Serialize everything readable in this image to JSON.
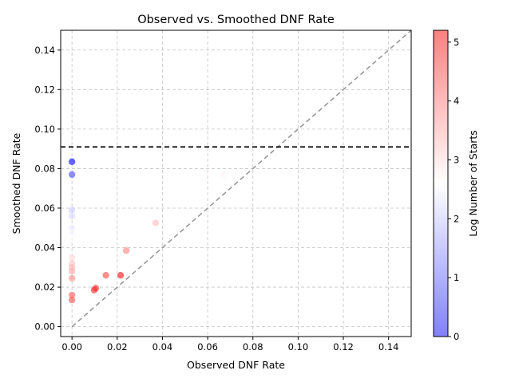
{
  "chart_data": {
    "type": "scatter",
    "title": "Observed vs. Smoothed DNF Rate",
    "xlabel": "Observed DNF Rate",
    "ylabel": "Smoothed DNF Rate",
    "xlim": [
      -0.005,
      0.15
    ],
    "ylim": [
      -0.005,
      0.15
    ],
    "x_ticks": [
      "0.00",
      "0.02",
      "0.04",
      "0.06",
      "0.08",
      "0.10",
      "0.12",
      "0.14"
    ],
    "y_ticks": [
      "0.00",
      "0.02",
      "0.04",
      "0.06",
      "0.08",
      "0.10",
      "0.12",
      "0.14"
    ],
    "grid": true,
    "reference_lines": [
      {
        "kind": "diagonal",
        "from": [
          0,
          0
        ],
        "to": [
          0.15,
          0.15
        ],
        "color": "#999999",
        "style": "dashed"
      },
      {
        "kind": "horizontal",
        "y": 0.091,
        "color": "#000000",
        "style": "dashed"
      }
    ],
    "colorbar": {
      "label": "Log Number of Starts",
      "ticks": [
        "0",
        "1",
        "2",
        "3",
        "4",
        "5"
      ],
      "range": [
        0,
        5.2
      ],
      "colormap": "bwr"
    },
    "points": [
      {
        "x": 0.0,
        "y": 0.0835,
        "c": 0.0
      },
      {
        "x": 0.0,
        "y": 0.077,
        "c": 0.69
      },
      {
        "x": 0.0,
        "y": 0.059,
        "c": 2.08
      },
      {
        "x": 0.0,
        "y": 0.056,
        "c": 2.2
      },
      {
        "x": 0.0,
        "y": 0.05,
        "c": 2.4
      },
      {
        "x": 0.0,
        "y": 0.047,
        "c": 2.5
      },
      {
        "x": 0.0,
        "y": 0.045,
        "c": 2.6
      },
      {
        "x": 0.0,
        "y": 0.035,
        "c": 3.0
      },
      {
        "x": 0.0,
        "y": 0.032,
        "c": 3.2
      },
      {
        "x": 0.0,
        "y": 0.03,
        "c": 3.4
      },
      {
        "x": 0.0,
        "y": 0.028,
        "c": 3.5
      },
      {
        "x": 0.0,
        "y": 0.0245,
        "c": 3.8
      },
      {
        "x": 0.0,
        "y": 0.016,
        "c": 4.3
      },
      {
        "x": 0.0,
        "y": 0.0135,
        "c": 4.4
      },
      {
        "x": 0.067,
        "y": 0.077,
        "c": 2.7
      },
      {
        "x": 0.037,
        "y": 0.0525,
        "c": 3.3
      },
      {
        "x": 0.024,
        "y": 0.0385,
        "c": 3.9
      },
      {
        "x": 0.0215,
        "y": 0.026,
        "c": 5.1
      },
      {
        "x": 0.015,
        "y": 0.026,
        "c": 4.5
      },
      {
        "x": 0.0105,
        "y": 0.0195,
        "c": 4.9
      },
      {
        "x": 0.0098,
        "y": 0.0185,
        "c": 4.8
      }
    ]
  }
}
